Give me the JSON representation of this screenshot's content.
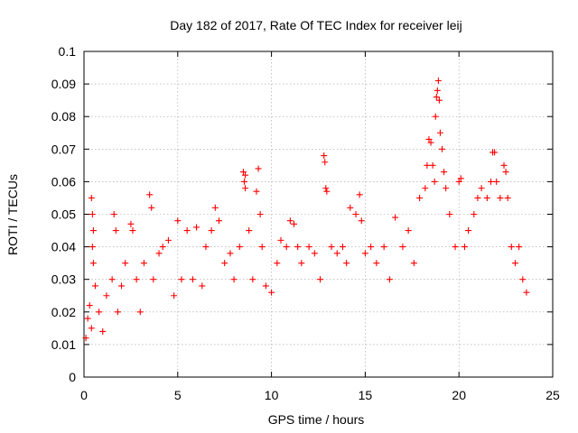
{
  "chart_data": {
    "type": "scatter",
    "title": "Day 182 of 2017, Rate Of TEC Index for receiver leij",
    "xlabel": "GPS time / hours",
    "ylabel": "ROTI / TECUs",
    "xlim": [
      0,
      25
    ],
    "ylim": [
      0,
      0.1
    ],
    "xticks": [
      0,
      5,
      10,
      15,
      20,
      25
    ],
    "xtick_labels": [
      "0",
      "5",
      "10",
      "15",
      "20",
      "25"
    ],
    "yticks": [
      0,
      0.01,
      0.02,
      0.03,
      0.04,
      0.05,
      0.06,
      0.07,
      0.08,
      0.09,
      0.1
    ],
    "ytick_labels": [
      "0",
      "0.01",
      "0.02",
      "0.03",
      "0.04",
      "0.05",
      "0.06",
      "0.07",
      "0.08",
      "0.09",
      "0.1"
    ],
    "grid": true,
    "marker": "+",
    "series_color": "#ff0000",
    "series": [
      {
        "name": "ROTI",
        "points": [
          [
            0.1,
            0.012
          ],
          [
            0.2,
            0.018
          ],
          [
            0.3,
            0.022
          ],
          [
            0.4,
            0.015
          ],
          [
            0.4,
            0.055
          ],
          [
            0.45,
            0.05
          ],
          [
            0.5,
            0.045
          ],
          [
            0.45,
            0.04
          ],
          [
            0.5,
            0.035
          ],
          [
            0.6,
            0.028
          ],
          [
            0.8,
            0.02
          ],
          [
            1.0,
            0.014
          ],
          [
            1.2,
            0.025
          ],
          [
            1.5,
            0.03
          ],
          [
            1.6,
            0.05
          ],
          [
            1.7,
            0.045
          ],
          [
            1.8,
            0.02
          ],
          [
            2.0,
            0.028
          ],
          [
            2.2,
            0.035
          ],
          [
            2.5,
            0.047
          ],
          [
            2.6,
            0.045
          ],
          [
            2.8,
            0.03
          ],
          [
            3.0,
            0.02
          ],
          [
            3.2,
            0.035
          ],
          [
            3.5,
            0.056
          ],
          [
            3.6,
            0.052
          ],
          [
            3.7,
            0.03
          ],
          [
            4.0,
            0.038
          ],
          [
            4.2,
            0.04
          ],
          [
            4.5,
            0.042
          ],
          [
            4.8,
            0.025
          ],
          [
            5.0,
            0.048
          ],
          [
            5.2,
            0.03
          ],
          [
            5.5,
            0.045
          ],
          [
            5.8,
            0.03
          ],
          [
            6.0,
            0.046
          ],
          [
            6.3,
            0.028
          ],
          [
            6.5,
            0.04
          ],
          [
            6.8,
            0.045
          ],
          [
            7.0,
            0.052
          ],
          [
            7.2,
            0.048
          ],
          [
            7.5,
            0.035
          ],
          [
            7.8,
            0.038
          ],
          [
            8.0,
            0.03
          ],
          [
            8.3,
            0.04
          ],
          [
            8.5,
            0.063
          ],
          [
            8.6,
            0.062
          ],
          [
            8.55,
            0.06
          ],
          [
            8.6,
            0.058
          ],
          [
            8.8,
            0.045
          ],
          [
            9.0,
            0.03
          ],
          [
            9.2,
            0.057
          ],
          [
            9.3,
            0.064
          ],
          [
            9.4,
            0.05
          ],
          [
            9.5,
            0.04
          ],
          [
            9.7,
            0.028
          ],
          [
            10.0,
            0.026
          ],
          [
            10.3,
            0.035
          ],
          [
            10.5,
            0.042
          ],
          [
            10.8,
            0.04
          ],
          [
            11.0,
            0.048
          ],
          [
            11.2,
            0.047
          ],
          [
            11.4,
            0.04
          ],
          [
            11.6,
            0.035
          ],
          [
            12.0,
            0.04
          ],
          [
            12.3,
            0.038
          ],
          [
            12.6,
            0.03
          ],
          [
            12.8,
            0.068
          ],
          [
            12.85,
            0.066
          ],
          [
            12.9,
            0.058
          ],
          [
            12.95,
            0.057
          ],
          [
            13.2,
            0.04
          ],
          [
            13.5,
            0.038
          ],
          [
            13.8,
            0.04
          ],
          [
            14.0,
            0.035
          ],
          [
            14.2,
            0.052
          ],
          [
            14.5,
            0.05
          ],
          [
            14.7,
            0.056
          ],
          [
            14.8,
            0.048
          ],
          [
            15.0,
            0.038
          ],
          [
            15.3,
            0.04
          ],
          [
            15.6,
            0.035
          ],
          [
            16.0,
            0.04
          ],
          [
            16.3,
            0.03
          ],
          [
            16.6,
            0.049
          ],
          [
            17.0,
            0.04
          ],
          [
            17.3,
            0.045
          ],
          [
            17.6,
            0.035
          ],
          [
            17.9,
            0.055
          ],
          [
            18.2,
            0.058
          ],
          [
            18.3,
            0.065
          ],
          [
            18.4,
            0.073
          ],
          [
            18.5,
            0.072
          ],
          [
            18.6,
            0.065
          ],
          [
            18.7,
            0.06
          ],
          [
            18.75,
            0.08
          ],
          [
            18.8,
            0.086
          ],
          [
            18.85,
            0.088
          ],
          [
            18.9,
            0.091
          ],
          [
            18.95,
            0.085
          ],
          [
            19.0,
            0.075
          ],
          [
            19.1,
            0.07
          ],
          [
            19.2,
            0.063
          ],
          [
            19.3,
            0.058
          ],
          [
            19.5,
            0.05
          ],
          [
            19.8,
            0.04
          ],
          [
            20.0,
            0.06
          ],
          [
            20.1,
            0.061
          ],
          [
            20.3,
            0.04
          ],
          [
            20.5,
            0.045
          ],
          [
            20.8,
            0.05
          ],
          [
            21.0,
            0.055
          ],
          [
            21.2,
            0.058
          ],
          [
            21.5,
            0.055
          ],
          [
            21.7,
            0.06
          ],
          [
            21.8,
            0.069
          ],
          [
            21.9,
            0.069
          ],
          [
            22.0,
            0.06
          ],
          [
            22.2,
            0.055
          ],
          [
            22.4,
            0.065
          ],
          [
            22.5,
            0.063
          ],
          [
            22.6,
            0.055
          ],
          [
            22.8,
            0.04
          ],
          [
            23.0,
            0.035
          ],
          [
            23.2,
            0.04
          ],
          [
            23.4,
            0.03
          ],
          [
            23.6,
            0.026
          ]
        ]
      }
    ]
  }
}
